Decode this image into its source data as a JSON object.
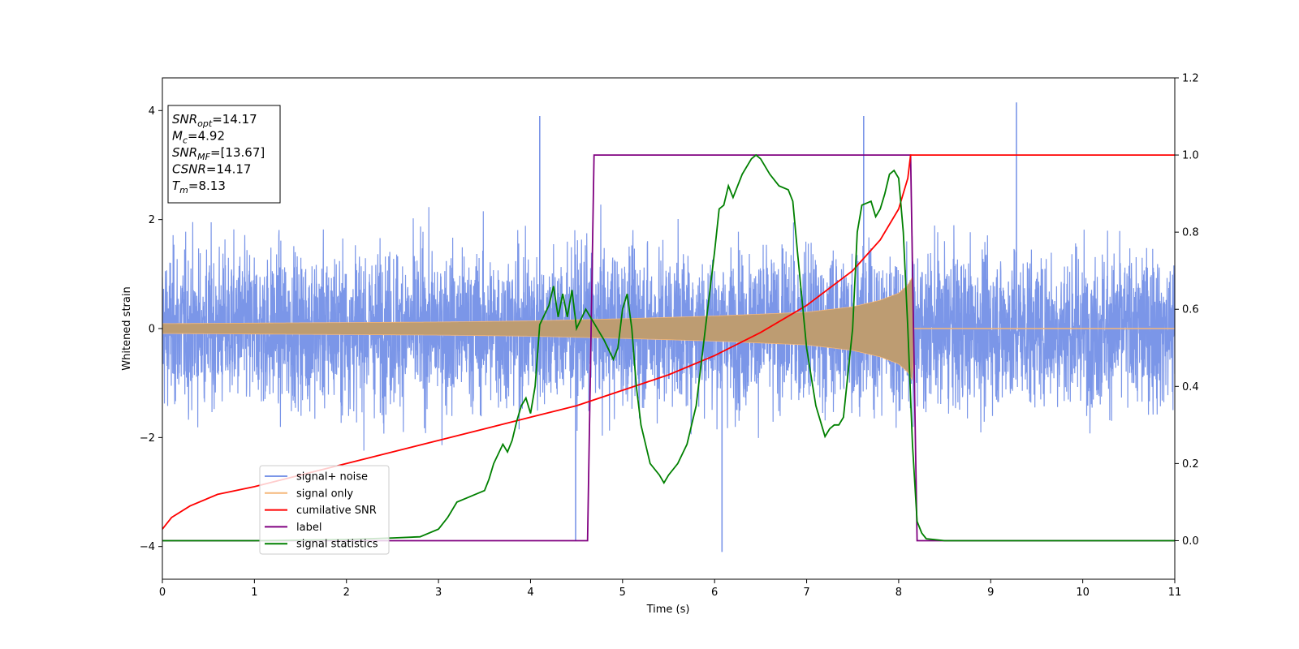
{
  "chart_data": {
    "type": "line",
    "xlabel": "Time (s)",
    "ylabel": "Whitened strain",
    "xlim": [
      0,
      11
    ],
    "ylim": [
      -4.6,
      4.6
    ],
    "y2lim": [
      -0.1,
      1.2
    ],
    "x_ticks": [
      "0",
      "1",
      "2",
      "3",
      "4",
      "5",
      "6",
      "7",
      "8",
      "9",
      "10",
      "11"
    ],
    "y_ticks": [
      "4",
      "2",
      "0",
      "−2",
      "−4"
    ],
    "y2_ticks": [
      "1.2",
      "1.0",
      "0.8",
      "0.6",
      "0.4",
      "0.2",
      "0.0"
    ],
    "grid": false,
    "legend_position": "lower-left",
    "info_box": [
      {
        "main": "SNR",
        "sub": "opt",
        "rest": "=14.17"
      },
      {
        "main": "M",
        "sub": "c",
        "rest": "=4.92"
      },
      {
        "main": "SNR",
        "sub": "MF",
        "rest": "=[13.67]"
      },
      {
        "main": "CSNR",
        "sub": "",
        "rest": "=14.17"
      },
      {
        "main": "T",
        "sub": "m",
        "rest": "=8.13"
      }
    ],
    "series": [
      {
        "name": "signal+ noise",
        "axis": "left",
        "color": "#7b96e8",
        "noise_sigma": 1.0,
        "extremes": [
          [
            4.49,
            -3.9
          ],
          [
            6.08,
            -4.1
          ],
          [
            9.28,
            4.15
          ],
          [
            4.1,
            3.9
          ],
          [
            7.62,
            3.9
          ]
        ]
      },
      {
        "name": "signal only",
        "axis": "left",
        "color": "#f5b77a",
        "envelope": [
          [
            0,
            0.09
          ],
          [
            1,
            0.1
          ],
          [
            2,
            0.11
          ],
          [
            3,
            0.12
          ],
          [
            4,
            0.14
          ],
          [
            5,
            0.18
          ],
          [
            6,
            0.23
          ],
          [
            7,
            0.3
          ],
          [
            7.5,
            0.4
          ],
          [
            7.8,
            0.52
          ],
          [
            8.0,
            0.65
          ],
          [
            8.1,
            0.8
          ],
          [
            8.15,
            0.95
          ],
          [
            8.18,
            0.0
          ],
          [
            11,
            0.0
          ]
        ]
      },
      {
        "name": "cumilative SNR",
        "axis": "right",
        "color": "#ff0000",
        "x": [
          0,
          0.1,
          0.3,
          0.6,
          1,
          1.5,
          2,
          2.5,
          3,
          3.5,
          4,
          4.5,
          5,
          5.5,
          6,
          6.5,
          7,
          7.5,
          7.8,
          8.0,
          8.1,
          8.13,
          11
        ],
        "y": [
          0.03,
          0.06,
          0.09,
          0.12,
          0.14,
          0.17,
          0.2,
          0.23,
          0.26,
          0.29,
          0.32,
          0.35,
          0.39,
          0.43,
          0.48,
          0.54,
          0.61,
          0.7,
          0.78,
          0.86,
          0.94,
          1.0,
          1.0
        ]
      },
      {
        "name": "label",
        "axis": "right",
        "color": "#800080",
        "x": [
          0,
          4.62,
          4.69,
          8.13,
          8.2,
          11
        ],
        "y": [
          0.0,
          0.0,
          1.0,
          1.0,
          0.0,
          0.0
        ]
      },
      {
        "name": "signal statistics",
        "axis": "right",
        "color": "#008000",
        "x": [
          0,
          1,
          2,
          2.5,
          2.8,
          3.0,
          3.1,
          3.2,
          3.3,
          3.4,
          3.5,
          3.55,
          3.6,
          3.7,
          3.75,
          3.8,
          3.85,
          3.9,
          3.95,
          4.0,
          4.05,
          4.1,
          4.2,
          4.25,
          4.3,
          4.35,
          4.4,
          4.45,
          4.5,
          4.6,
          4.7,
          4.8,
          4.9,
          4.95,
          5.0,
          5.05,
          5.1,
          5.15,
          5.2,
          5.3,
          5.4,
          5.45,
          5.5,
          5.6,
          5.7,
          5.8,
          5.9,
          6.0,
          6.05,
          6.1,
          6.15,
          6.2,
          6.3,
          6.4,
          6.45,
          6.5,
          6.6,
          6.7,
          6.8,
          6.85,
          6.9,
          7.0,
          7.1,
          7.2,
          7.25,
          7.3,
          7.35,
          7.4,
          7.5,
          7.55,
          7.6,
          7.7,
          7.75,
          7.8,
          7.85,
          7.9,
          7.95,
          8.0,
          8.05,
          8.1,
          8.15,
          8.2,
          8.25,
          8.3,
          8.5,
          9,
          10,
          11
        ],
        "y": [
          0.0,
          0.0,
          0.003,
          0.007,
          0.01,
          0.03,
          0.06,
          0.1,
          0.11,
          0.12,
          0.13,
          0.16,
          0.2,
          0.25,
          0.23,
          0.26,
          0.31,
          0.35,
          0.37,
          0.33,
          0.4,
          0.56,
          0.61,
          0.66,
          0.58,
          0.64,
          0.58,
          0.65,
          0.55,
          0.6,
          0.56,
          0.52,
          0.47,
          0.5,
          0.6,
          0.64,
          0.55,
          0.4,
          0.3,
          0.2,
          0.17,
          0.15,
          0.17,
          0.2,
          0.25,
          0.35,
          0.55,
          0.75,
          0.86,
          0.87,
          0.92,
          0.89,
          0.95,
          0.99,
          1.0,
          0.99,
          0.95,
          0.92,
          0.91,
          0.88,
          0.75,
          0.5,
          0.35,
          0.27,
          0.29,
          0.3,
          0.3,
          0.32,
          0.55,
          0.8,
          0.87,
          0.88,
          0.84,
          0.86,
          0.9,
          0.95,
          0.96,
          0.94,
          0.8,
          0.55,
          0.25,
          0.05,
          0.02,
          0.005,
          0.0,
          0.0,
          0.0,
          0.0
        ]
      }
    ]
  }
}
